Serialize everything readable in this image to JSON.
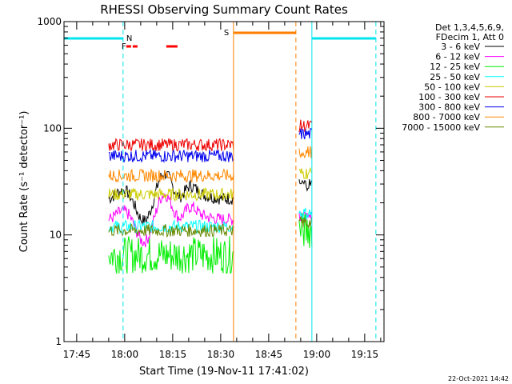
{
  "chart_data": {
    "type": "line",
    "title": "RHESSI Observing Summary Count Rates",
    "xlabel": "Start Time (19-Nov-11 17:41:02)",
    "ylabel": "Count Rate (s⁻¹ detector⁻¹)",
    "footer": "22-Oct-2021 14:42",
    "x_unit": "minutes since 17:41:02",
    "xlim_clock": [
      "17:41:02",
      "19:21:02"
    ],
    "xticks": [
      "17:45",
      "18:00",
      "18:15",
      "18:30",
      "18:45",
      "19:00",
      "19:15"
    ],
    "y_scale": "log",
    "ylim": [
      1,
      1000
    ],
    "yticks": [
      "1",
      "10",
      "100",
      "1000"
    ],
    "legend_header": [
      "Det 1,3,4,5,6,9,",
      "FDecim 1, Att 0"
    ],
    "flags": [
      {
        "label": "N",
        "color": "#00e5ee"
      },
      {
        "label": "F",
        "color": "#ff0000"
      },
      {
        "label": "S",
        "color": "#ff7f00"
      }
    ],
    "series": [
      {
        "name": "3 - 6 keV",
        "color": "#000000"
      },
      {
        "name": "6 - 12 keV",
        "color": "#ff00ff"
      },
      {
        "name": "12 - 25 keV",
        "color": "#00ee00"
      },
      {
        "name": "25 - 50 keV",
        "color": "#00ffff"
      },
      {
        "name": "50 - 100 keV",
        "color": "#cccc00"
      },
      {
        "name": "100 - 300 keV",
        "color": "#ee0000"
      },
      {
        "name": "300 - 800 keV",
        "color": "#0000ee"
      },
      {
        "name": "800 - 7000 keV",
        "color": "#ff8800"
      },
      {
        "name": "7000 - 15000 keV",
        "color": "#668800"
      }
    ],
    "segments": [
      {
        "start": "17:55:00",
        "end": "18:34:00",
        "levels": [
          22,
          14,
          6.5,
          12,
          24,
          70,
          55,
          36,
          11
        ]
      },
      {
        "start": "18:54:30",
        "end": "18:58:30",
        "levels": [
          30,
          15,
          11,
          16,
          38,
          105,
          88,
          60,
          13
        ]
      }
    ]
  }
}
